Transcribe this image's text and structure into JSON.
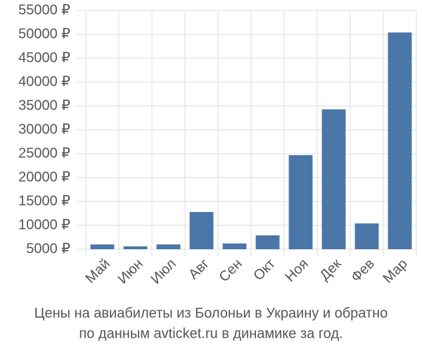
{
  "chart_data": {
    "type": "bar",
    "title": [
      "Цены на авиабилеты из Болоньи в Украину и обратно",
      "по данным avticket.ru в динамике за год."
    ],
    "categories": [
      "Май",
      "Июн",
      "Июл",
      "Авг",
      "Сен",
      "Окт",
      "Ноя",
      "Дек",
      "Фев",
      "Мар"
    ],
    "values": [
      6000,
      5600,
      6000,
      12800,
      6200,
      7900,
      24700,
      34300,
      10400,
      50400
    ],
    "color": "#4a76a8",
    "ylim": [
      5000,
      55000
    ],
    "yticks": [
      {
        "value": 5000,
        "label": "5000 ₽"
      },
      {
        "value": 10000,
        "label": "10000 ₽"
      },
      {
        "value": 15000,
        "label": "15000 ₽"
      },
      {
        "value": 20000,
        "label": "20000 ₽"
      },
      {
        "value": 25000,
        "label": "25000 ₽"
      },
      {
        "value": 30000,
        "label": "30000 ₽"
      },
      {
        "value": 35000,
        "label": "35000 ₽"
      },
      {
        "value": 40000,
        "label": "40000 ₽"
      },
      {
        "value": 45000,
        "label": "45000 ₽"
      },
      {
        "value": 50000,
        "label": "50000 ₽"
      },
      {
        "value": 55000,
        "label": "55000 ₽"
      }
    ],
    "grid": true
  }
}
